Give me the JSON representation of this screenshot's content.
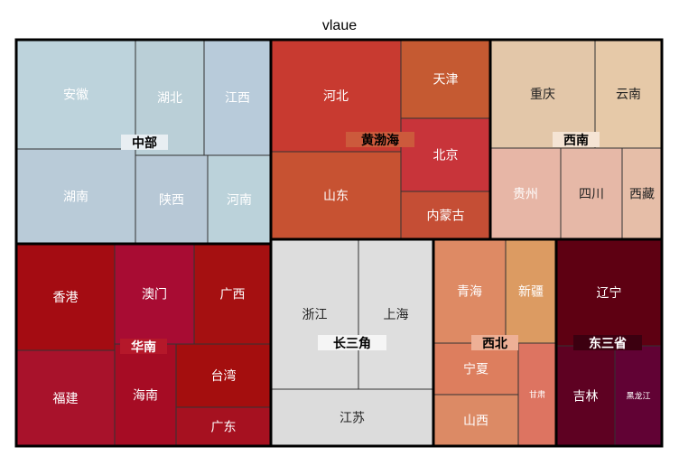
{
  "chart_data": {
    "type": "treemap",
    "title": "vlaue",
    "groups": [
      {
        "name": "中部",
        "label_bg": "#e8eef2",
        "label_color": "#000000",
        "leaves": [
          {
            "name": "安徽",
            "color": "#bdd3dc"
          },
          {
            "name": "湖北",
            "color": "#bacfd7"
          },
          {
            "name": "江西",
            "color": "#b8cbda"
          },
          {
            "name": "湖南",
            "color": "#b9cbd8"
          },
          {
            "name": "陕西",
            "color": "#b7c8d6"
          },
          {
            "name": "河南",
            "color": "#bbd2da"
          }
        ]
      },
      {
        "name": "黄渤海",
        "label_bg": "#cc5a3c",
        "label_color": "#000000",
        "leaves": [
          {
            "name": "河北",
            "color": "#c83a30"
          },
          {
            "name": "天津",
            "color": "#c55a32"
          },
          {
            "name": "北京",
            "color": "#c8343a"
          },
          {
            "name": "山东",
            "color": "#c75232"
          },
          {
            "name": "内蒙古",
            "color": "#c54e35"
          }
        ]
      },
      {
        "name": "西南",
        "label_bg": "#f5e4d4",
        "label_color": "#000000",
        "leaves": [
          {
            "name": "重庆",
            "color": "#e3c7a9",
            "dark": true
          },
          {
            "name": "云南",
            "color": "#e6c9a8",
            "dark": true
          },
          {
            "name": "贵州",
            "color": "#e7b6a6"
          },
          {
            "name": "四川",
            "color": "#e6b8a7",
            "dark": true
          },
          {
            "name": "西藏",
            "color": "#e6bea8",
            "dark": true
          }
        ]
      },
      {
        "name": "华南",
        "label_bg": "#b5182a",
        "label_color": "#ffffff",
        "leaves": [
          {
            "name": "香港",
            "color": "#a40c12"
          },
          {
            "name": "澳门",
            "color": "#a80c33"
          },
          {
            "name": "广西",
            "color": "#a51011"
          },
          {
            "name": "福建",
            "color": "#a8122b"
          },
          {
            "name": "海南",
            "color": "#a60c24"
          },
          {
            "name": "台湾",
            "color": "#a40e0e"
          },
          {
            "name": "广东",
            "color": "#a61120"
          }
        ]
      },
      {
        "name": "长三角",
        "label_bg": "#f5f5f5",
        "label_color": "#000000",
        "leaves": [
          {
            "name": "浙江",
            "color": "#dddddd",
            "dark": true
          },
          {
            "name": "上海",
            "color": "#dedede",
            "dark": true
          },
          {
            "name": "江苏",
            "color": "#dcdcdc",
            "dark": true
          }
        ]
      },
      {
        "name": "西北",
        "label_bg": "#eeb096",
        "label_color": "#000000",
        "leaves": [
          {
            "name": "青海",
            "color": "#de8a64"
          },
          {
            "name": "新疆",
            "color": "#dc9b62"
          },
          {
            "name": "宁夏",
            "color": "#dd7e5e"
          },
          {
            "name": "山西",
            "color": "#dc8a65"
          },
          {
            "name": "甘肃",
            "color": "#dd7461",
            "small": true
          }
        ]
      },
      {
        "name": "东三省",
        "label_bg": "#3c0010",
        "label_color": "#ffffff",
        "leaves": [
          {
            "name": "辽宁",
            "color": "#5e0012"
          },
          {
            "name": "吉林",
            "color": "#5e0122"
          },
          {
            "name": "黑龙江",
            "color": "#610234",
            "small": true
          }
        ]
      }
    ]
  }
}
